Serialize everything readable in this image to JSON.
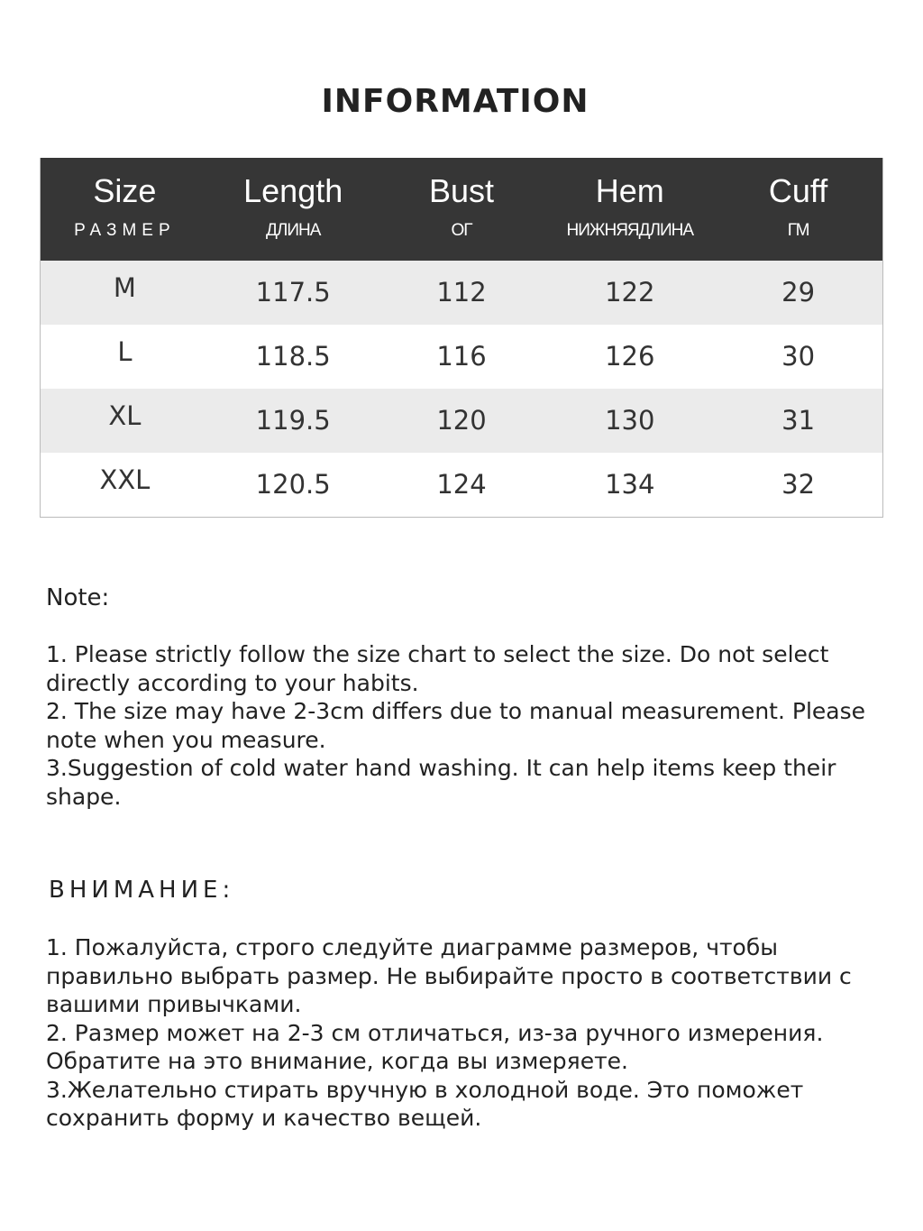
{
  "title": "INFORMATION",
  "table": {
    "headers": [
      {
        "en": "Size",
        "ru": "РАЗМЕР"
      },
      {
        "en": "Length",
        "ru": "ДЛИНА"
      },
      {
        "en": "Bust",
        "ru": "ОГ"
      },
      {
        "en": "Hem",
        "ru": "НИЖНЯЯДЛИНА"
      },
      {
        "en": "Cuff",
        "ru": "ГМ"
      }
    ],
    "rows": [
      [
        "M",
        "117.5",
        "112",
        "122",
        "29"
      ],
      [
        "L",
        "118.5",
        "116",
        "126",
        "30"
      ],
      [
        "XL",
        "119.5",
        "120",
        "130",
        "31"
      ],
      [
        "XXL",
        "120.5",
        "124",
        "134",
        "32"
      ]
    ]
  },
  "note_en": {
    "heading": "Note:",
    "items": [
      "1. Please strictly follow the size chart  to select the size. Do not select directly according to your habits.",
      "2. The size may have 2-3cm differs due to manual measurement. Please note when you measure.",
      "3.Suggestion of cold water hand washing. It can help items keep their shape."
    ]
  },
  "note_ru": {
    "heading": "ВНИМАНИЕ:",
    "items": [
      "1. Пожалуйста, строго следуйте диаграмме размеров, чтобы правильно выбрать размер. Не выбирайте просто в соответствии с вашими привычками.",
      "2. Размер может на 2-3 см отличаться, из-за ручного измерения. Обратите на это внимание, когда вы измеряете.",
      "3.Желательно стирать вручную в холодной воде. Это поможет сохранить форму и качество вещей."
    ]
  }
}
